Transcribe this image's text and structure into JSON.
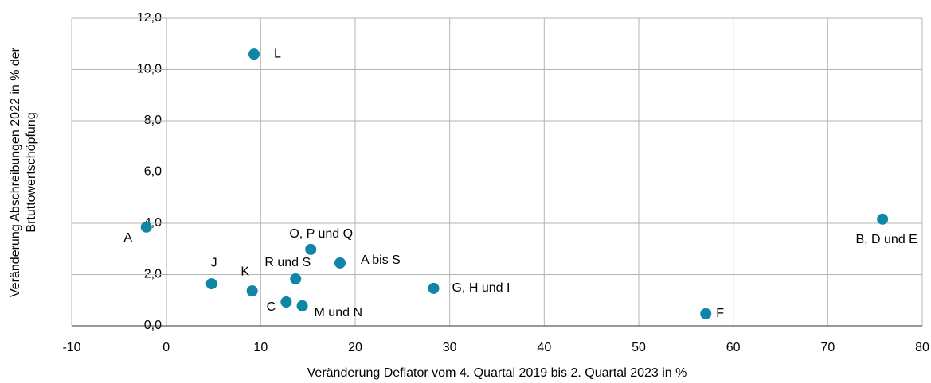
{
  "chart_data": {
    "type": "scatter",
    "x_label": "Veränderung Deflator vom 4. Quartal 2019 bis 2. Quartal 2023 in %",
    "y_label": [
      "Veränderung Abschreibungen 2022 in % der",
      "Brtuttowertschöpfung"
    ],
    "color": "#0f86a6",
    "point_labels": [
      "L",
      "A",
      "O, P und Q",
      "A bis S",
      "R und S",
      "J",
      "K",
      "C",
      "M und N",
      "G, H und I",
      "F",
      "B, D und E"
    ],
    "x": [
      9.3,
      -2.1,
      15.3,
      18.4,
      13.7,
      4.8,
      9.1,
      12.7,
      14.4,
      28.3,
      57.1,
      75.8
    ],
    "values": [
      10.6,
      3.85,
      2.98,
      2.45,
      1.83,
      1.64,
      1.36,
      0.93,
      0.78,
      1.46,
      0.47,
      4.16
    ],
    "xlim": [
      -10,
      80
    ],
    "xticks": [
      -10,
      0,
      10,
      20,
      30,
      40,
      50,
      60,
      70,
      80
    ],
    "ylim": [
      0,
      12
    ],
    "yticks": [
      {
        "value": 0,
        "label": "0,0"
      },
      {
        "value": 2,
        "label": "2,0"
      },
      {
        "value": 4,
        "label": "4,0"
      },
      {
        "value": 6,
        "label": "6,0"
      },
      {
        "value": 8,
        "label": "8,0"
      },
      {
        "value": 10,
        "label": "10,0"
      },
      {
        "value": 12,
        "label": "12,0"
      }
    ],
    "grid": true
  }
}
